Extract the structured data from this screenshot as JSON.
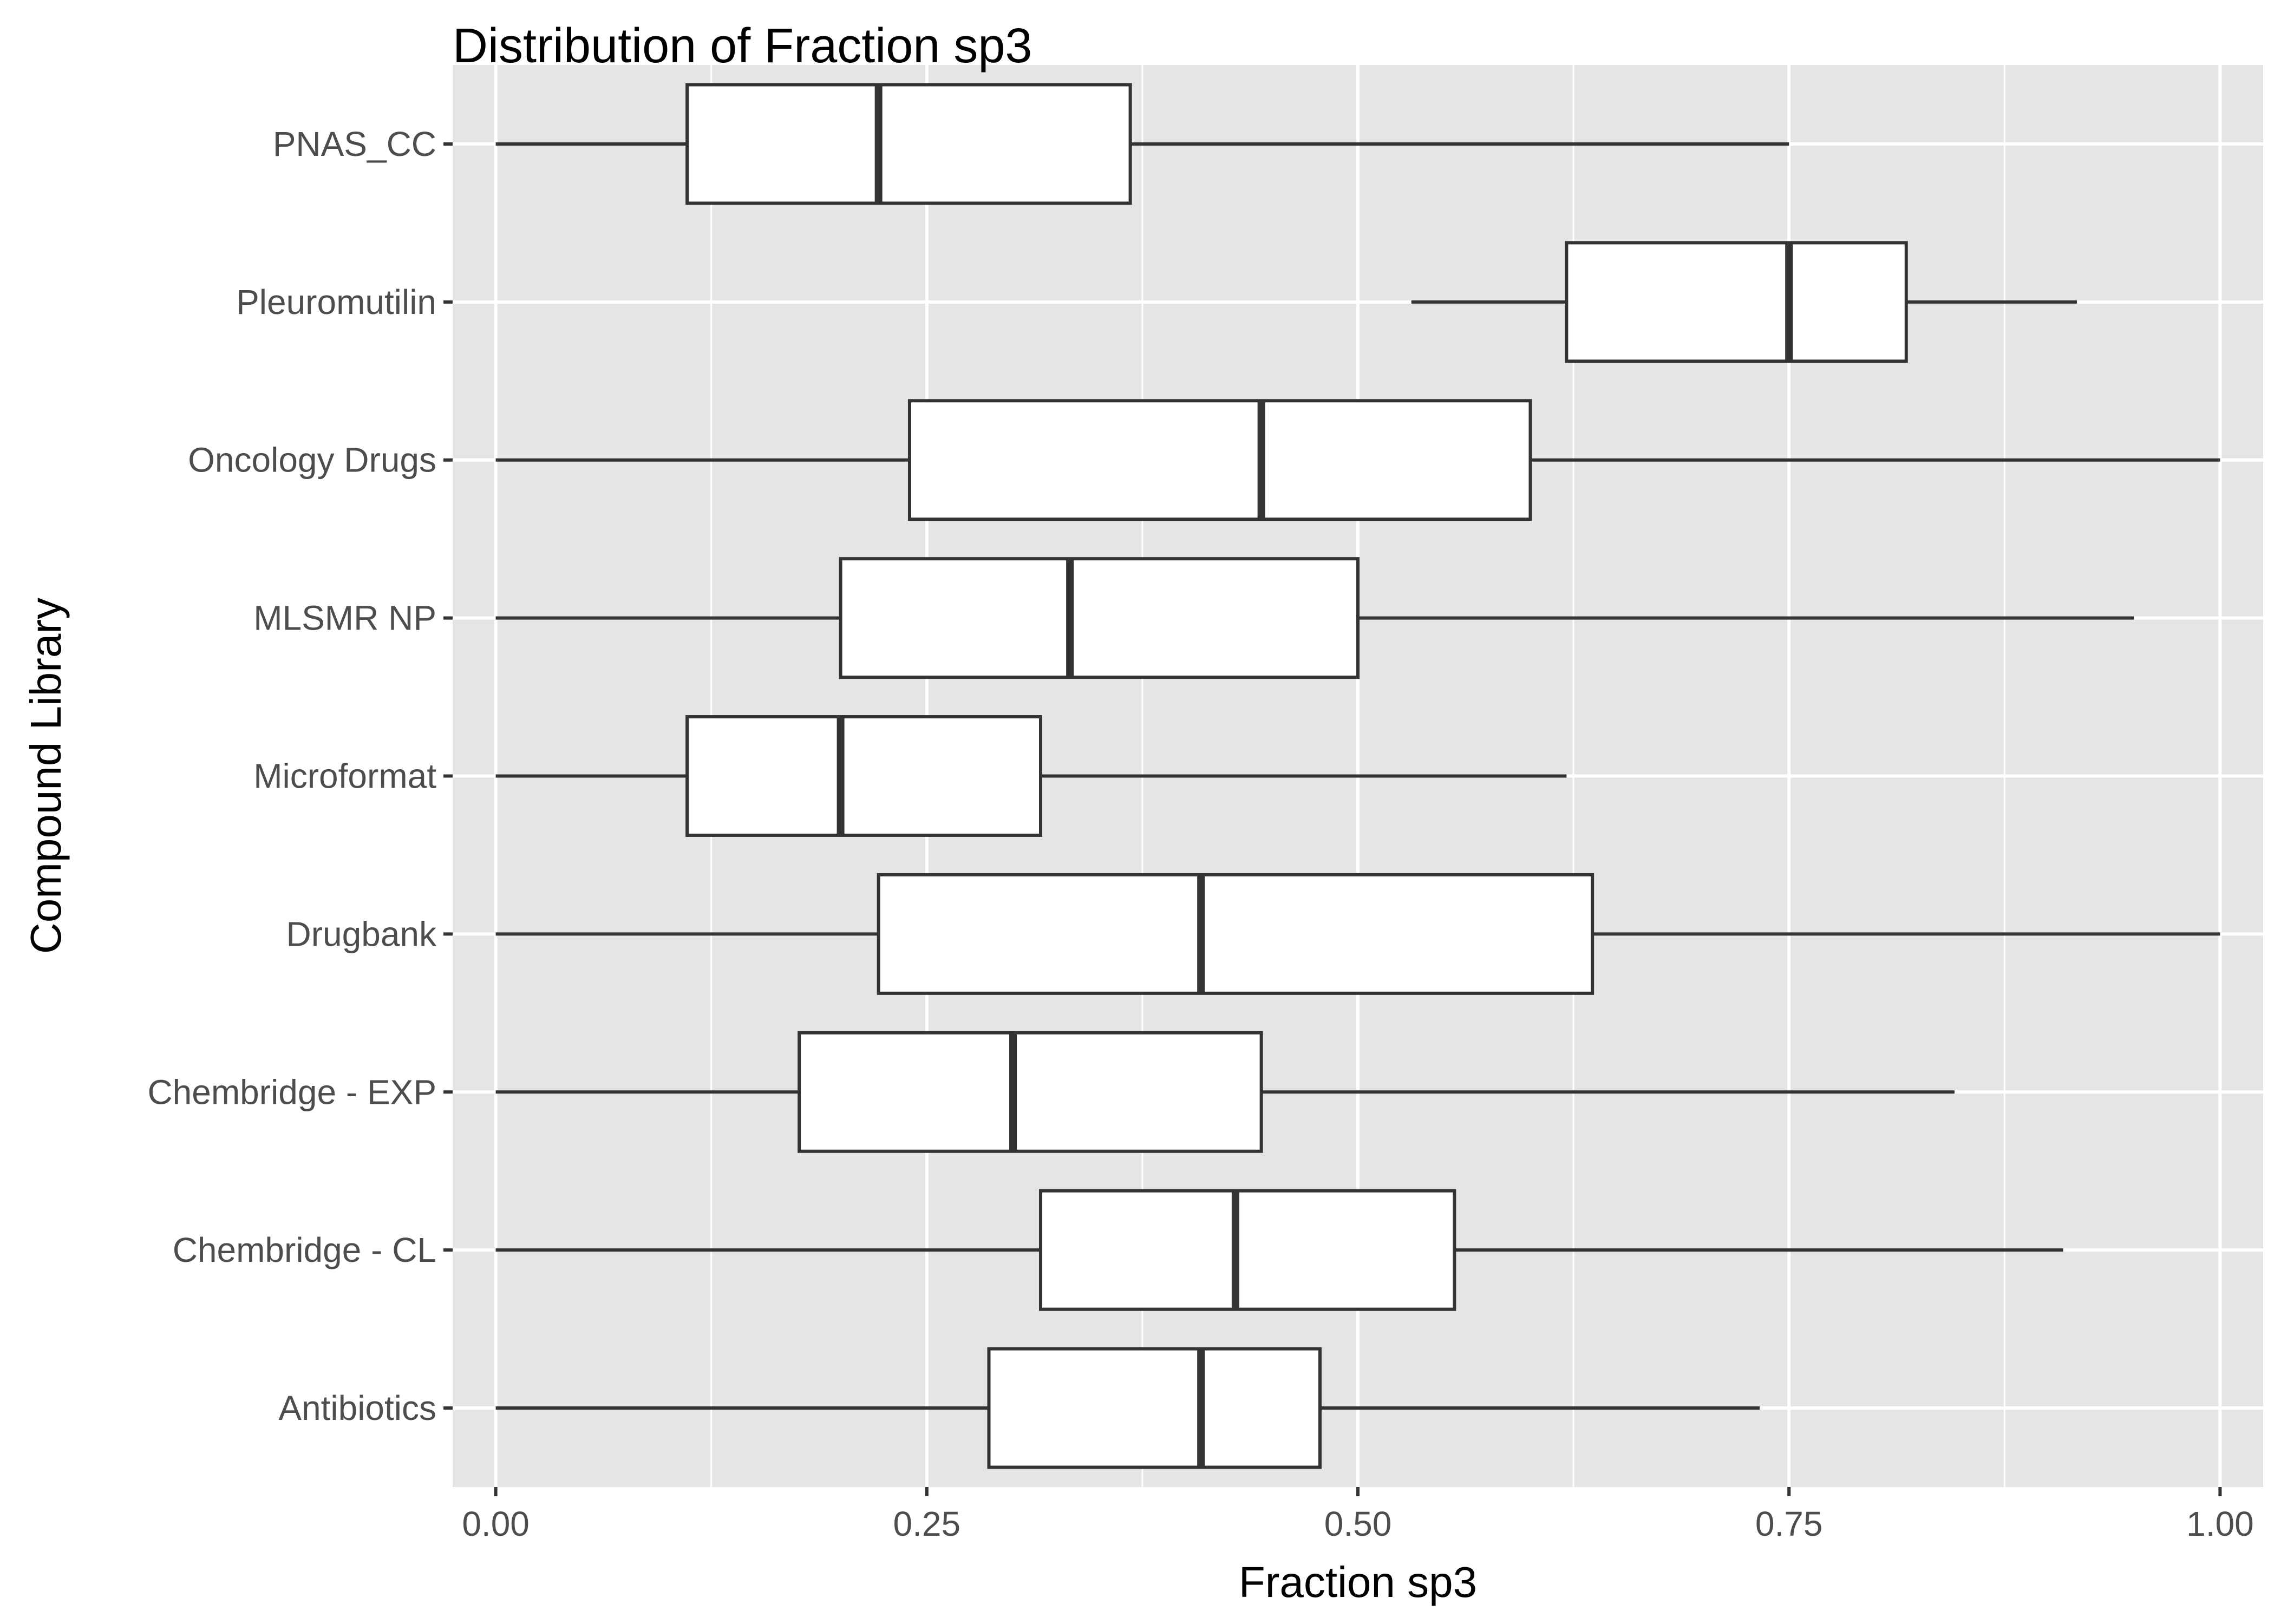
{
  "chart_data": {
    "type": "boxplot",
    "orientation": "horizontal",
    "title": "Distribution of Fraction sp3",
    "xlabel": "Fraction sp3",
    "ylabel": "Compound Library",
    "xlim": [
      -0.025,
      1.025
    ],
    "x_ticks": [
      0.0,
      0.25,
      0.5,
      0.75,
      1.0
    ],
    "x_tick_labels": [
      "0.00",
      "0.25",
      "0.50",
      "0.75",
      "1.00"
    ],
    "grid": true,
    "categories": [
      "Antibiotics",
      "Chembridge - CL",
      "Chembridge - EXP",
      "Drugbank",
      "Microformat",
      "MLSMR NP",
      "Oncology Drugs",
      "Pleuromutilin",
      "PNAS_CC"
    ],
    "boxes": [
      {
        "category": "Antibiotics",
        "min": 0.0,
        "q1": 0.286,
        "median": 0.409,
        "q3": 0.478,
        "max": 0.733
      },
      {
        "category": "Chembridge - CL",
        "min": 0.0,
        "q1": 0.316,
        "median": 0.429,
        "q3": 0.556,
        "max": 0.909
      },
      {
        "category": "Chembridge - EXP",
        "min": 0.0,
        "q1": 0.176,
        "median": 0.3,
        "q3": 0.444,
        "max": 0.846
      },
      {
        "category": "Drugbank",
        "min": 0.0,
        "q1": 0.222,
        "median": 0.409,
        "q3": 0.636,
        "max": 1.0
      },
      {
        "category": "Microformat",
        "min": 0.0,
        "q1": 0.111,
        "median": 0.2,
        "q3": 0.316,
        "max": 0.621
      },
      {
        "category": "MLSMR NP",
        "min": 0.0,
        "q1": 0.2,
        "median": 0.333,
        "q3": 0.5,
        "max": 0.95
      },
      {
        "category": "Oncology Drugs",
        "min": 0.0,
        "q1": 0.24,
        "median": 0.444,
        "q3": 0.6,
        "max": 1.0
      },
      {
        "category": "Pleuromutilin",
        "min": 0.531,
        "q1": 0.621,
        "median": 0.75,
        "q3": 0.818,
        "max": 0.917
      },
      {
        "category": "PNAS_CC",
        "min": 0.0,
        "q1": 0.111,
        "median": 0.222,
        "q3": 0.368,
        "max": 0.75
      }
    ],
    "colors": {
      "panel_background": "#e5e5e5",
      "grid": "#ffffff",
      "box_fill": "#ffffff",
      "box_stroke": "#333333",
      "axis_text": "#4d4d4d",
      "title_text": "#000000"
    }
  }
}
